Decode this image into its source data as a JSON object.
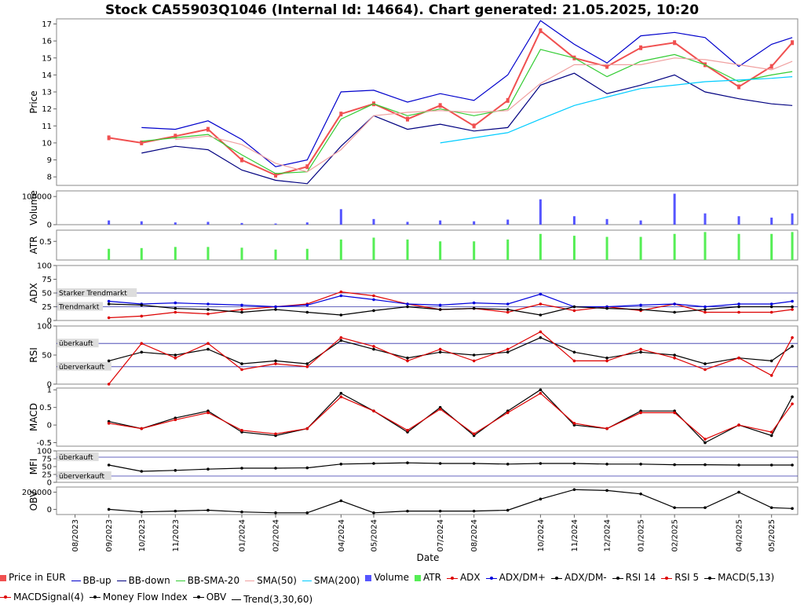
{
  "title": "Stock CA55903Q1046 (Internal Id: 14664). Chart generated: 21.05.2025, 10:20",
  "x_axis_label": "Date",
  "date_ticks": [
    "08/2023",
    "09/2023",
    "10/2023",
    "11/2023",
    "01/2024",
    "02/2024",
    "04/2024",
    "05/2024",
    "07/2024",
    "08/2024",
    "10/2024",
    "11/2024",
    "12/2024",
    "01/2025",
    "02/2025",
    "04/2025",
    "05/2025"
  ],
  "panels": {
    "price": {
      "ylabel": "Price",
      "ticks": [
        "8",
        "9",
        "10",
        "11",
        "12",
        "13",
        "14",
        "15",
        "16",
        "17"
      ]
    },
    "volume": {
      "ylabel": "Volume",
      "ticks": [
        "0",
        "100000"
      ]
    },
    "atr": {
      "ylabel": "ATR",
      "ticks": [
        "0.5"
      ]
    },
    "adx": {
      "ylabel": "ADX",
      "ticks": [
        "0",
        "25",
        "50",
        "75",
        "100"
      ],
      "annotations": [
        "Starker Trendmarkt",
        "Trendmarkt"
      ]
    },
    "rsi": {
      "ylabel": "RSI",
      "ticks": [
        "0",
        "50",
        "100"
      ],
      "annotations": [
        "überkauft",
        "überverkauft"
      ]
    },
    "macd": {
      "ylabel": "MACD",
      "ticks": [
        "-0.5",
        "0",
        "0.5",
        "1"
      ]
    },
    "mfi": {
      "ylabel": "MFI",
      "ticks": [
        "0",
        "25",
        "50",
        "75",
        "100"
      ],
      "annotations": [
        "überkauft",
        "überverkauft"
      ]
    },
    "obv": {
      "ylabel": "OBV",
      "ticks": [
        "0",
        "200000"
      ]
    }
  },
  "legend": [
    {
      "label": "Price in EUR",
      "kind": "box",
      "color": "#f05050"
    },
    {
      "label": "BB-up",
      "kind": "line",
      "color": "#0000cc"
    },
    {
      "label": "BB-down",
      "kind": "line",
      "color": "#000080"
    },
    {
      "label": "BB-SMA-20",
      "kind": "line",
      "color": "#33cc33"
    },
    {
      "label": "SMA(50)",
      "kind": "line",
      "color": "#f0a0a0"
    },
    {
      "label": "SMA(200)",
      "kind": "line",
      "color": "#00ccff"
    },
    {
      "label": "Volume",
      "kind": "box",
      "color": "#5555ff"
    },
    {
      "label": "ATR",
      "kind": "box",
      "color": "#55ee55"
    },
    {
      "label": "ADX",
      "kind": "dot",
      "color": "#dd0000"
    },
    {
      "label": "ADX/DM+",
      "kind": "dot",
      "color": "#0000dd"
    },
    {
      "label": "ADX/DM-",
      "kind": "dot",
      "color": "#000000"
    },
    {
      "label": "RSI 14",
      "kind": "dot",
      "color": "#000000"
    },
    {
      "label": "RSI 5",
      "kind": "dot",
      "color": "#dd0000"
    },
    {
      "label": "MACD(5,13)",
      "kind": "dot",
      "color": "#000000"
    },
    {
      "label": "MACDSignal(4)",
      "kind": "dot",
      "color": "#dd0000"
    },
    {
      "label": "Money Flow Index",
      "kind": "dot",
      "color": "#000000"
    },
    {
      "label": "OBV",
      "kind": "dot",
      "color": "#000000"
    },
    {
      "label": "Trend(3,30,60)",
      "kind": "line",
      "color": "#000000"
    }
  ],
  "chart_data": {
    "type": "line",
    "title": "Stock CA55903Q1046 (Internal Id: 14664). Chart generated: 21.05.2025, 10:20",
    "xlabel": "Date",
    "x": [
      "2023-09-01",
      "2023-10-01",
      "2023-11-01",
      "2023-12-01",
      "2024-01-01",
      "2024-02-01",
      "2024-03-01",
      "2024-04-01",
      "2024-05-01",
      "2024-06-01",
      "2024-07-01",
      "2024-08-01",
      "2024-09-01",
      "2024-10-01",
      "2024-11-01",
      "2024-12-01",
      "2025-01-01",
      "2025-02-01",
      "2025-03-01",
      "2025-04-01",
      "2025-05-01",
      "2025-05-20"
    ],
    "series": [
      {
        "name": "Price in EUR",
        "panel": "price",
        "values": [
          10.3,
          10.0,
          10.4,
          10.8,
          9.0,
          8.1,
          8.6,
          11.7,
          12.3,
          11.4,
          12.2,
          11.0,
          12.5,
          16.6,
          15.0,
          14.5,
          15.6,
          15.9,
          14.6,
          13.3,
          14.5,
          15.9
        ]
      },
      {
        "name": "BB-up",
        "panel": "price",
        "values": [
          null,
          10.9,
          10.8,
          11.3,
          10.2,
          8.6,
          9.0,
          13.0,
          13.1,
          12.4,
          12.9,
          12.5,
          14.0,
          17.2,
          15.8,
          14.7,
          16.3,
          16.5,
          16.2,
          14.5,
          15.8,
          16.2
        ]
      },
      {
        "name": "BB-down",
        "panel": "price",
        "values": [
          null,
          9.4,
          9.8,
          9.6,
          8.4,
          7.8,
          7.6,
          9.8,
          11.6,
          10.8,
          11.1,
          10.7,
          10.9,
          13.4,
          14.1,
          12.9,
          13.4,
          14.0,
          13.0,
          12.6,
          12.3,
          12.2
        ]
      },
      {
        "name": "BB-SMA-20",
        "panel": "price",
        "values": [
          null,
          10.1,
          10.3,
          10.5,
          9.3,
          8.2,
          8.3,
          11.4,
          12.3,
          11.6,
          12.0,
          11.6,
          12.0,
          15.5,
          15.0,
          13.9,
          14.8,
          15.2,
          14.6,
          13.6,
          14.0,
          14.2
        ]
      },
      {
        "name": "SMA(50)",
        "panel": "price",
        "values": [
          null,
          null,
          10.2,
          10.4,
          9.9,
          8.8,
          8.3,
          9.6,
          11.6,
          11.8,
          11.9,
          11.8,
          11.9,
          13.5,
          14.6,
          14.6,
          14.6,
          15.0,
          14.9,
          14.6,
          14.3,
          14.8
        ]
      },
      {
        "name": "SMA(200)",
        "panel": "price",
        "values": [
          null,
          null,
          null,
          null,
          null,
          null,
          null,
          null,
          null,
          null,
          10.0,
          10.3,
          10.6,
          11.4,
          12.2,
          12.7,
          13.2,
          13.4,
          13.6,
          13.7,
          13.8,
          13.9
        ]
      },
      {
        "name": "Volume",
        "panel": "volume",
        "values": [
          15000,
          12000,
          8000,
          10000,
          6000,
          4000,
          8000,
          55000,
          20000,
          10000,
          15000,
          12000,
          18000,
          90000,
          30000,
          20000,
          15000,
          110000,
          40000,
          30000,
          25000,
          40000
        ]
      },
      {
        "name": "ATR",
        "panel": "atr",
        "values": [
          0.3,
          0.32,
          0.35,
          0.35,
          0.33,
          0.28,
          0.3,
          0.55,
          0.6,
          0.55,
          0.5,
          0.5,
          0.55,
          0.7,
          0.65,
          0.62,
          0.62,
          0.7,
          0.75,
          0.7,
          0.7,
          0.75
        ]
      },
      {
        "name": "ADX",
        "panel": "adx",
        "values": [
          5,
          8,
          15,
          12,
          20,
          25,
          30,
          52,
          45,
          30,
          20,
          22,
          15,
          30,
          18,
          25,
          18,
          30,
          15,
          15,
          15,
          20
        ]
      },
      {
        "name": "ADX/DM+",
        "panel": "adx",
        "values": [
          35,
          30,
          32,
          30,
          28,
          25,
          28,
          45,
          38,
          30,
          28,
          32,
          30,
          48,
          25,
          25,
          28,
          30,
          25,
          30,
          30,
          35
        ]
      },
      {
        "name": "ADX/DM-",
        "panel": "adx",
        "values": [
          30,
          28,
          22,
          20,
          15,
          20,
          15,
          10,
          18,
          25,
          20,
          22,
          20,
          10,
          25,
          22,
          20,
          15,
          20,
          25,
          25,
          25
        ]
      },
      {
        "name": "RSI 14",
        "panel": "rsi",
        "values": [
          40,
          55,
          50,
          60,
          35,
          40,
          35,
          75,
          60,
          45,
          55,
          50,
          55,
          80,
          55,
          45,
          55,
          50,
          35,
          45,
          40,
          65
        ]
      },
      {
        "name": "RSI 5",
        "panel": "rsi",
        "values": [
          0,
          70,
          45,
          70,
          25,
          35,
          30,
          80,
          65,
          40,
          60,
          40,
          60,
          90,
          40,
          40,
          60,
          45,
          25,
          45,
          15,
          80
        ]
      },
      {
        "name": "MACD(5,13)",
        "panel": "macd",
        "values": [
          0.1,
          -0.1,
          0.2,
          0.4,
          -0.2,
          -0.3,
          -0.1,
          0.9,
          0.4,
          -0.2,
          0.5,
          -0.3,
          0.4,
          1.0,
          0.0,
          -0.1,
          0.4,
          0.4,
          -0.5,
          0.0,
          -0.3,
          0.8
        ]
      },
      {
        "name": "MACDSignal(4)",
        "panel": "macd",
        "values": [
          0.05,
          -0.1,
          0.15,
          0.35,
          -0.15,
          -0.25,
          -0.1,
          0.8,
          0.4,
          -0.15,
          0.45,
          -0.25,
          0.35,
          0.9,
          0.05,
          -0.1,
          0.35,
          0.35,
          -0.4,
          0.0,
          -0.2,
          0.6
        ]
      },
      {
        "name": "Money Flow Index",
        "panel": "mfi",
        "values": [
          55,
          35,
          38,
          42,
          45,
          45,
          46,
          58,
          60,
          62,
          60,
          60,
          58,
          60,
          60,
          58,
          58,
          56,
          56,
          55,
          55,
          55
        ]
      },
      {
        "name": "OBV",
        "panel": "obv",
        "values": [
          0,
          -30000,
          -20000,
          -10000,
          -30000,
          -40000,
          -40000,
          100000,
          -40000,
          -20000,
          -20000,
          -20000,
          -10000,
          120000,
          230000,
          220000,
          180000,
          20000,
          20000,
          200000,
          20000,
          10000
        ]
      }
    ],
    "ylim": {
      "price": [
        7.5,
        17.3
      ],
      "volume": [
        0,
        120000
      ],
      "atr": [
        0,
        0.8
      ],
      "adx": [
        0,
        100
      ],
      "rsi": [
        0,
        100
      ],
      "macd": [
        -0.6,
        1.05
      ],
      "mfi": [
        0,
        100
      ],
      "obv": [
        -60000,
        260000
      ]
    },
    "grid": false,
    "legend_placement": "bottom"
  }
}
